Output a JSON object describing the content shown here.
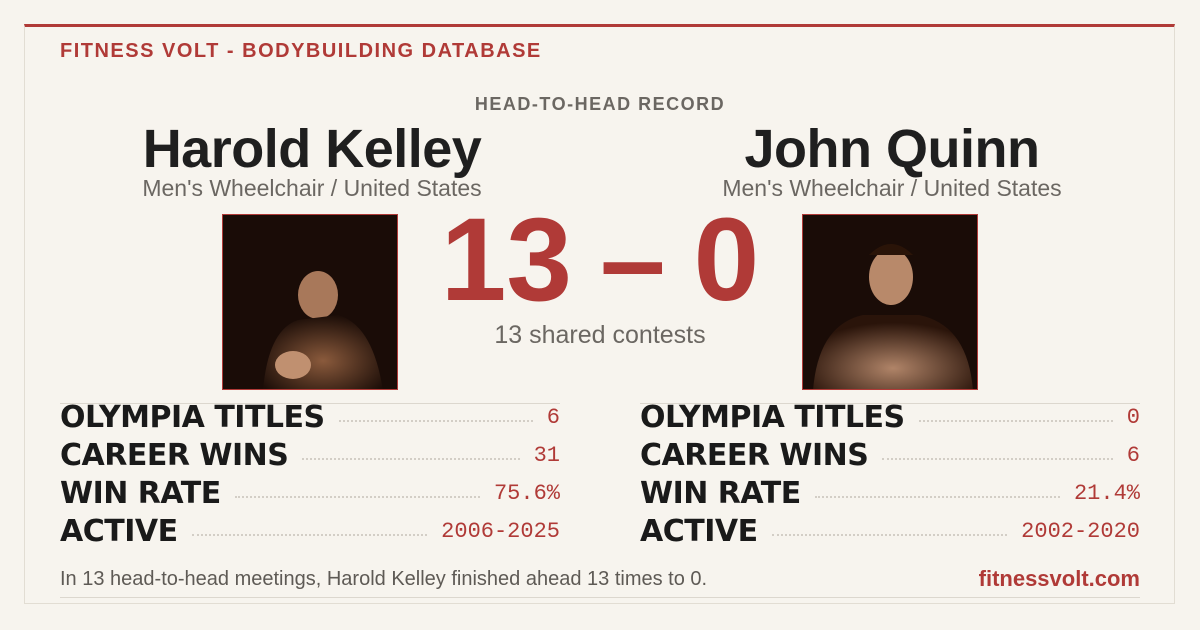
{
  "header": {
    "brand": "FITNESS VOLT - BODYBUILDING DATABASE",
    "title": "HEAD-TO-HEAD RECORD"
  },
  "athletes": [
    {
      "name": "Harold Kelley",
      "division": "Men's Wheelchair / United States",
      "stats": [
        {
          "label": "OLYMPIA TITLES",
          "value": "6"
        },
        {
          "label": "CAREER WINS",
          "value": "31"
        },
        {
          "label": "WIN RATE",
          "value": "75.6%"
        },
        {
          "label": "ACTIVE",
          "value": "2006-2025"
        }
      ]
    },
    {
      "name": "John Quinn",
      "division": "Men's Wheelchair / United States",
      "stats": [
        {
          "label": "OLYMPIA TITLES",
          "value": "0"
        },
        {
          "label": "CAREER WINS",
          "value": "6"
        },
        {
          "label": "WIN RATE",
          "value": "21.4%"
        },
        {
          "label": "ACTIVE",
          "value": "2002-2020"
        }
      ]
    }
  ],
  "score": {
    "left": "13",
    "separator": "–",
    "right": "0",
    "caption": "13 shared contests"
  },
  "footer": {
    "summary": "In 13 head-to-head meetings, Harold Kelley finished ahead 13 times to 0.",
    "site": "fitnessvolt.com"
  }
}
